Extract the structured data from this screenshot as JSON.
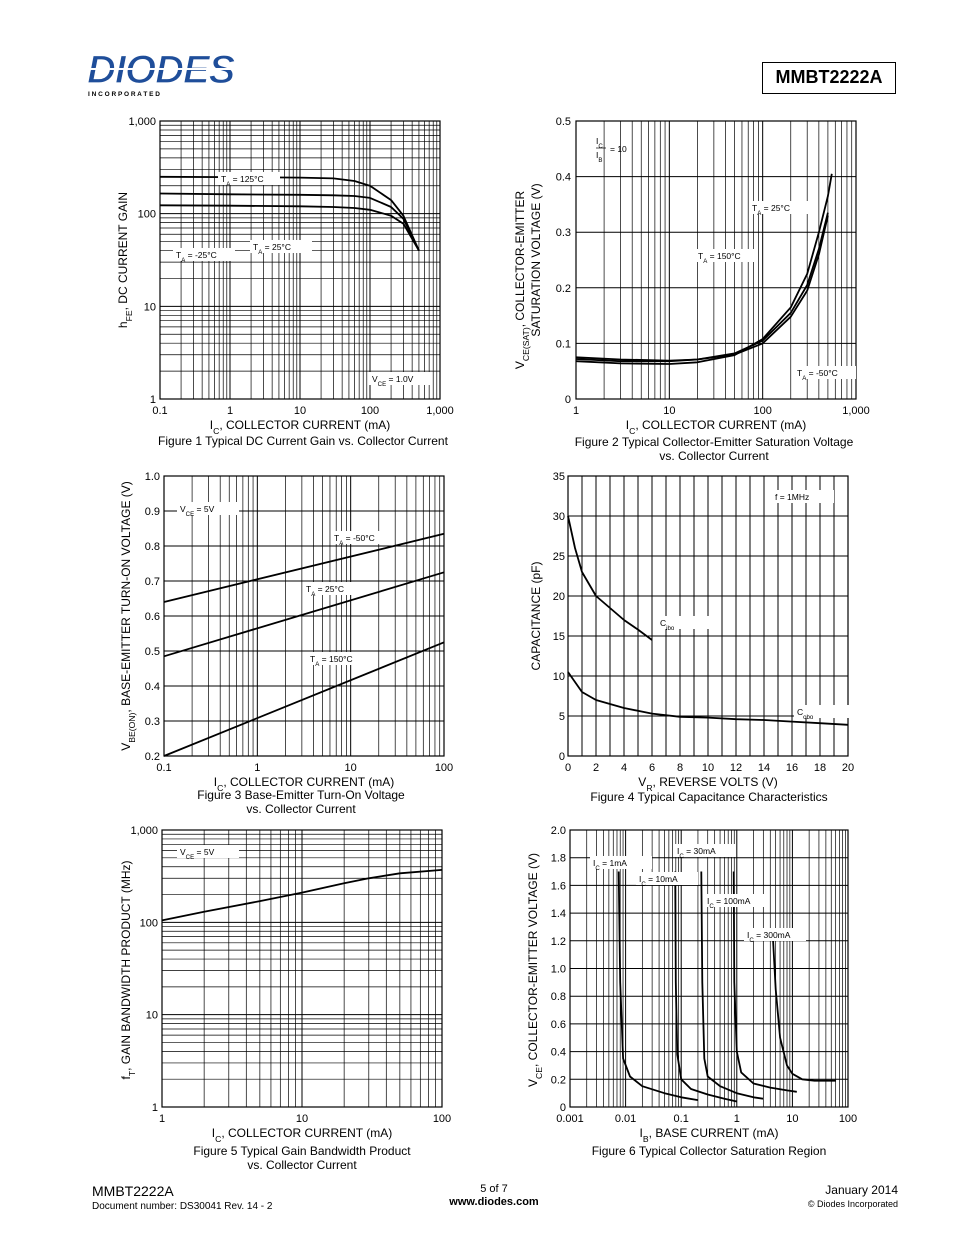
{
  "header": {
    "logo_text": "DIODES",
    "logo_subtext": "I N C O R P O R A T E D",
    "part_number": "MMBT2222A"
  },
  "footer": {
    "part_number": "MMBT2222A",
    "document_number": "Document number: DS30041 Rev. 14 - 2",
    "page": "5 of 7",
    "website": "www.diodes.com",
    "date": "January 2014",
    "copyright": "© Diodes Incorporated"
  },
  "chart_data": [
    {
      "id": "fig1",
      "type": "line",
      "xscale": "log",
      "yscale": "log",
      "xlim": [
        0.1,
        1000
      ],
      "ylim": [
        1,
        1000
      ],
      "xticks": [
        "0.1",
        "1",
        "10",
        "100",
        "1,000"
      ],
      "yticks": [
        "1",
        "10",
        "100",
        "1,000"
      ],
      "xlabel_main": "I",
      "xlabel_sub": "C",
      "xlabel_rest": ", COLLECTOR CURRENT (mA)",
      "ylabel_main": "h",
      "ylabel_sub": "FE",
      "ylabel_rest": ", DC CURRENT GAIN",
      "caption": [
        "Figure 1 Typical DC Current Gain vs. Collector Current"
      ],
      "series": [
        {
          "name": "TA = 125°C",
          "x": [
            0.1,
            1,
            10,
            30,
            60,
            100,
            200,
            300,
            500
          ],
          "y": [
            250,
            248,
            245,
            240,
            225,
            200,
            140,
            95,
            40
          ]
        },
        {
          "name": "TA = 25°C",
          "x": [
            0.1,
            1,
            10,
            30,
            60,
            100,
            200,
            300,
            500
          ],
          "y": [
            165,
            162,
            160,
            158,
            155,
            148,
            118,
            88,
            40
          ]
        },
        {
          "name": "TA = -25°C",
          "x": [
            0.1,
            1,
            10,
            30,
            60,
            100,
            200,
            300,
            500
          ],
          "y": [
            123,
            122,
            120,
            118,
            115,
            110,
            95,
            78,
            40
          ]
        }
      ],
      "annotations": [
        {
          "main": "T",
          "sub": "A",
          "rest": " = 125°C"
        },
        {
          "main": "T",
          "sub": "A",
          "rest": " = 25°C"
        },
        {
          "main": "T",
          "sub": "A",
          "rest": " = -25°C"
        },
        {
          "main": "V",
          "sub": "CE",
          "rest": " = 1.0V"
        }
      ]
    },
    {
      "id": "fig2",
      "type": "line",
      "xscale": "log",
      "yscale": "linear",
      "xlim": [
        1,
        1000
      ],
      "ylim": [
        0,
        0.5
      ],
      "xticks": [
        "1",
        "10",
        "100",
        "1,000"
      ],
      "yticks": [
        "0",
        "0.1",
        "0.2",
        "0.3",
        "0.4",
        "0.5"
      ],
      "xlabel_main": "I",
      "xlabel_sub": "C",
      "xlabel_rest": ", COLLECTOR CURRENT (mA)",
      "ylabel_main": "V",
      "ylabel_sub": "CE(SAT)",
      "ylabel_rest": ", COLLECTOR-EMITTER",
      "ylabel_line2": "SATURATION VOLTAGE (V)",
      "caption": [
        "Figure 2 Typical Collector-Emitter Saturation Voltage",
        "vs. Collector Current"
      ],
      "series": [
        {
          "name": "TA = 25°C",
          "x": [
            1,
            3,
            10,
            20,
            50,
            100,
            200,
            300,
            400,
            500
          ],
          "y": [
            0.072,
            0.068,
            0.068,
            0.071,
            0.082,
            0.105,
            0.155,
            0.205,
            0.27,
            0.335
          ]
        },
        {
          "name": "TA = 150°C",
          "x": [
            1,
            3,
            10,
            20,
            50,
            100,
            200,
            300,
            400,
            500
          ],
          "y": [
            0.075,
            0.071,
            0.069,
            0.071,
            0.08,
            0.1,
            0.148,
            0.195,
            0.26,
            0.33
          ]
        },
        {
          "name": "TA = -50°C",
          "x": [
            1,
            3,
            10,
            20,
            50,
            100,
            200,
            300,
            400,
            500,
            550
          ],
          "y": [
            0.068,
            0.064,
            0.063,
            0.066,
            0.079,
            0.108,
            0.165,
            0.225,
            0.3,
            0.365,
            0.405
          ]
        }
      ],
      "annotations": [
        {
          "main": "T",
          "sub": "A",
          "rest": " = 25°C"
        },
        {
          "main": "T",
          "sub": "A",
          "rest": " = 150°C"
        },
        {
          "main": "T",
          "sub": "A",
          "rest": " = -50°C"
        },
        {
          "top": "I",
          "top_sub": "C",
          "bottom": "I",
          "bottom_sub": "B",
          "rest": " = 10"
        }
      ]
    },
    {
      "id": "fig3",
      "type": "line",
      "xscale": "log",
      "yscale": "linear",
      "xlim": [
        0.1,
        100
      ],
      "ylim": [
        0.2,
        1.0
      ],
      "xticks": [
        "0.1",
        "1",
        "10",
        "100"
      ],
      "yticks": [
        "0.2",
        "0.3",
        "0.4",
        "0.5",
        "0.6",
        "0.7",
        "0.8",
        "0.9",
        "1.0"
      ],
      "xlabel_main": "I",
      "xlabel_sub": "C",
      "xlabel_rest": ", COLLECTOR CURRENT (mA)",
      "ylabel_main": "V",
      "ylabel_sub": "BE(ON)",
      "ylabel_rest": ", BASE-EMITTER TURN-ON VOLTAGE (V)",
      "caption": [
        "Figure 3 Base-Emitter Turn-On Voltage",
        "vs. Collector Current"
      ],
      "series": [
        {
          "name": "TA = -50°C",
          "x": [
            0.1,
            100
          ],
          "y": [
            0.64,
            0.835
          ]
        },
        {
          "name": "TA = 25°C",
          "x": [
            0.1,
            100
          ],
          "y": [
            0.485,
            0.725
          ]
        },
        {
          "name": "TA = 150°C",
          "x": [
            0.1,
            100
          ],
          "y": [
            0.2,
            0.525
          ]
        }
      ],
      "annotations": [
        {
          "main": "V",
          "sub": "CE",
          "rest": " = 5V"
        },
        {
          "main": "T",
          "sub": "A",
          "rest": " = -50°C"
        },
        {
          "main": "T",
          "sub": "A",
          "rest": " = 25°C"
        },
        {
          "main": "T",
          "sub": "A",
          "rest": " = 150°C"
        }
      ]
    },
    {
      "id": "fig4",
      "type": "line",
      "xscale": "linear",
      "yscale": "linear",
      "xlim": [
        0,
        20
      ],
      "ylim": [
        0,
        35
      ],
      "xticks": [
        "0",
        "2",
        "4",
        "6",
        "8",
        "10",
        "12",
        "14",
        "16",
        "18",
        "20"
      ],
      "yticks": [
        "0",
        "5",
        "10",
        "15",
        "20",
        "25",
        "30",
        "35"
      ],
      "xlabel_main": "V",
      "xlabel_sub": "R",
      "xlabel_rest": ", REVERSE VOLTS (V)",
      "ylabel_main": "CAPACITANCE (pF)",
      "ylabel_sub": "",
      "ylabel_rest": "",
      "caption": [
        "Figure 4 Typical Capacitance Characteristics"
      ],
      "series": [
        {
          "name": "Cibo",
          "x": [
            0,
            0.5,
            1,
            2,
            3,
            4,
            5,
            6
          ],
          "y": [
            30,
            26,
            23,
            20,
            18.5,
            17,
            15.8,
            14.5
          ]
        },
        {
          "name": "Cobo",
          "x": [
            0,
            1,
            2,
            4,
            6,
            8,
            10,
            12,
            14,
            16,
            18,
            20
          ],
          "y": [
            10.5,
            8,
            7,
            6,
            5.3,
            4.9,
            4.8,
            4.6,
            4.5,
            4.3,
            4.1,
            3.9
          ]
        }
      ],
      "annotations": [
        {
          "main": "f = 1MHz",
          "sub": "",
          "rest": ""
        },
        {
          "main": "C",
          "sub": "ibo",
          "rest": ""
        },
        {
          "main": "C",
          "sub": "obo",
          "rest": ""
        }
      ]
    },
    {
      "id": "fig5",
      "type": "line",
      "xscale": "log",
      "yscale": "log",
      "xlim": [
        1,
        100
      ],
      "ylim": [
        1,
        1000
      ],
      "xticks": [
        "1",
        "10",
        "100"
      ],
      "yticks": [
        "1",
        "10",
        "100",
        "1,000"
      ],
      "xlabel_main": "I",
      "xlabel_sub": "C",
      "xlabel_rest": ", COLLECTOR CURRENT (mA)",
      "ylabel_main": "f",
      "ylabel_sub": "T",
      "ylabel_rest": ", GAIN BANDWIDTH PRODUCT (MHz)",
      "caption": [
        "Figure 5 Typical Gain Bandwidth Product",
        "vs. Collector Current"
      ],
      "series": [
        {
          "name": "fT",
          "x": [
            1,
            2,
            5,
            10,
            20,
            30,
            50,
            100
          ],
          "y": [
            105,
            130,
            170,
            210,
            265,
            300,
            340,
            370
          ]
        }
      ],
      "annotations": [
        {
          "main": "V",
          "sub": "CE",
          "rest": " = 5V"
        }
      ]
    },
    {
      "id": "fig6",
      "type": "line",
      "xscale": "log",
      "yscale": "linear",
      "xlim": [
        0.001,
        100
      ],
      "ylim": [
        0,
        2.0
      ],
      "xticks": [
        "0.001",
        "0.01",
        "0.1",
        "1",
        "10",
        "100"
      ],
      "yticks": [
        "0",
        "0.2",
        "0.4",
        "0.6",
        "0.8",
        "1.0",
        "1.2",
        "1.4",
        "1.6",
        "1.8",
        "2.0"
      ],
      "xlabel_main": "I",
      "xlabel_sub": "B",
      "xlabel_rest": ", BASE CURRENT (mA)",
      "ylabel_main": "V",
      "ylabel_sub": "CE",
      "ylabel_rest": ", COLLECTOR-EMITTER VOLTAGE (V)",
      "caption": [
        "Figure 6 Typical Collector Saturation Region"
      ],
      "series": [
        {
          "name": "IC = 1mA",
          "x": [
            0.0075,
            0.008,
            0.009,
            0.012,
            0.02,
            0.05,
            0.1,
            0.2
          ],
          "y": [
            1.7,
            0.9,
            0.35,
            0.22,
            0.15,
            0.1,
            0.07,
            0.05
          ]
        },
        {
          "name": "IC = 10mA",
          "x": [
            0.078,
            0.08,
            0.085,
            0.1,
            0.15,
            0.3,
            0.6,
            1.0
          ],
          "y": [
            1.7,
            0.9,
            0.38,
            0.2,
            0.13,
            0.09,
            0.06,
            0.04
          ]
        },
        {
          "name": "IC = 30mA",
          "x": [
            0.23,
            0.24,
            0.26,
            0.3,
            0.5,
            1.0,
            2.0,
            3.0
          ],
          "y": [
            1.7,
            0.9,
            0.35,
            0.22,
            0.15,
            0.1,
            0.07,
            0.06
          ]
        },
        {
          "name": "IC = 100mA",
          "x": [
            0.88,
            0.9,
            1.0,
            1.2,
            2,
            4,
            8,
            12
          ],
          "y": [
            1.7,
            0.9,
            0.4,
            0.25,
            0.17,
            0.14,
            0.12,
            0.11
          ]
        },
        {
          "name": "IC = 300mA",
          "x": [
            4.5,
            5,
            6,
            8,
            10,
            15,
            25,
            40,
            60
          ],
          "y": [
            1.2,
            0.85,
            0.5,
            0.3,
            0.24,
            0.2,
            0.19,
            0.19,
            0.19
          ]
        }
      ],
      "annotations": [
        {
          "main": "I",
          "sub": "C",
          "rest": " = 1mA"
        },
        {
          "main": "I",
          "sub": "C",
          "rest": " = 10mA"
        },
        {
          "main": "I",
          "sub": "C",
          "rest": " = 30mA"
        },
        {
          "main": "I",
          "sub": "C",
          "rest": " = 100mA"
        },
        {
          "main": "I",
          "sub": "C",
          "rest": " = 300mA"
        }
      ]
    }
  ]
}
